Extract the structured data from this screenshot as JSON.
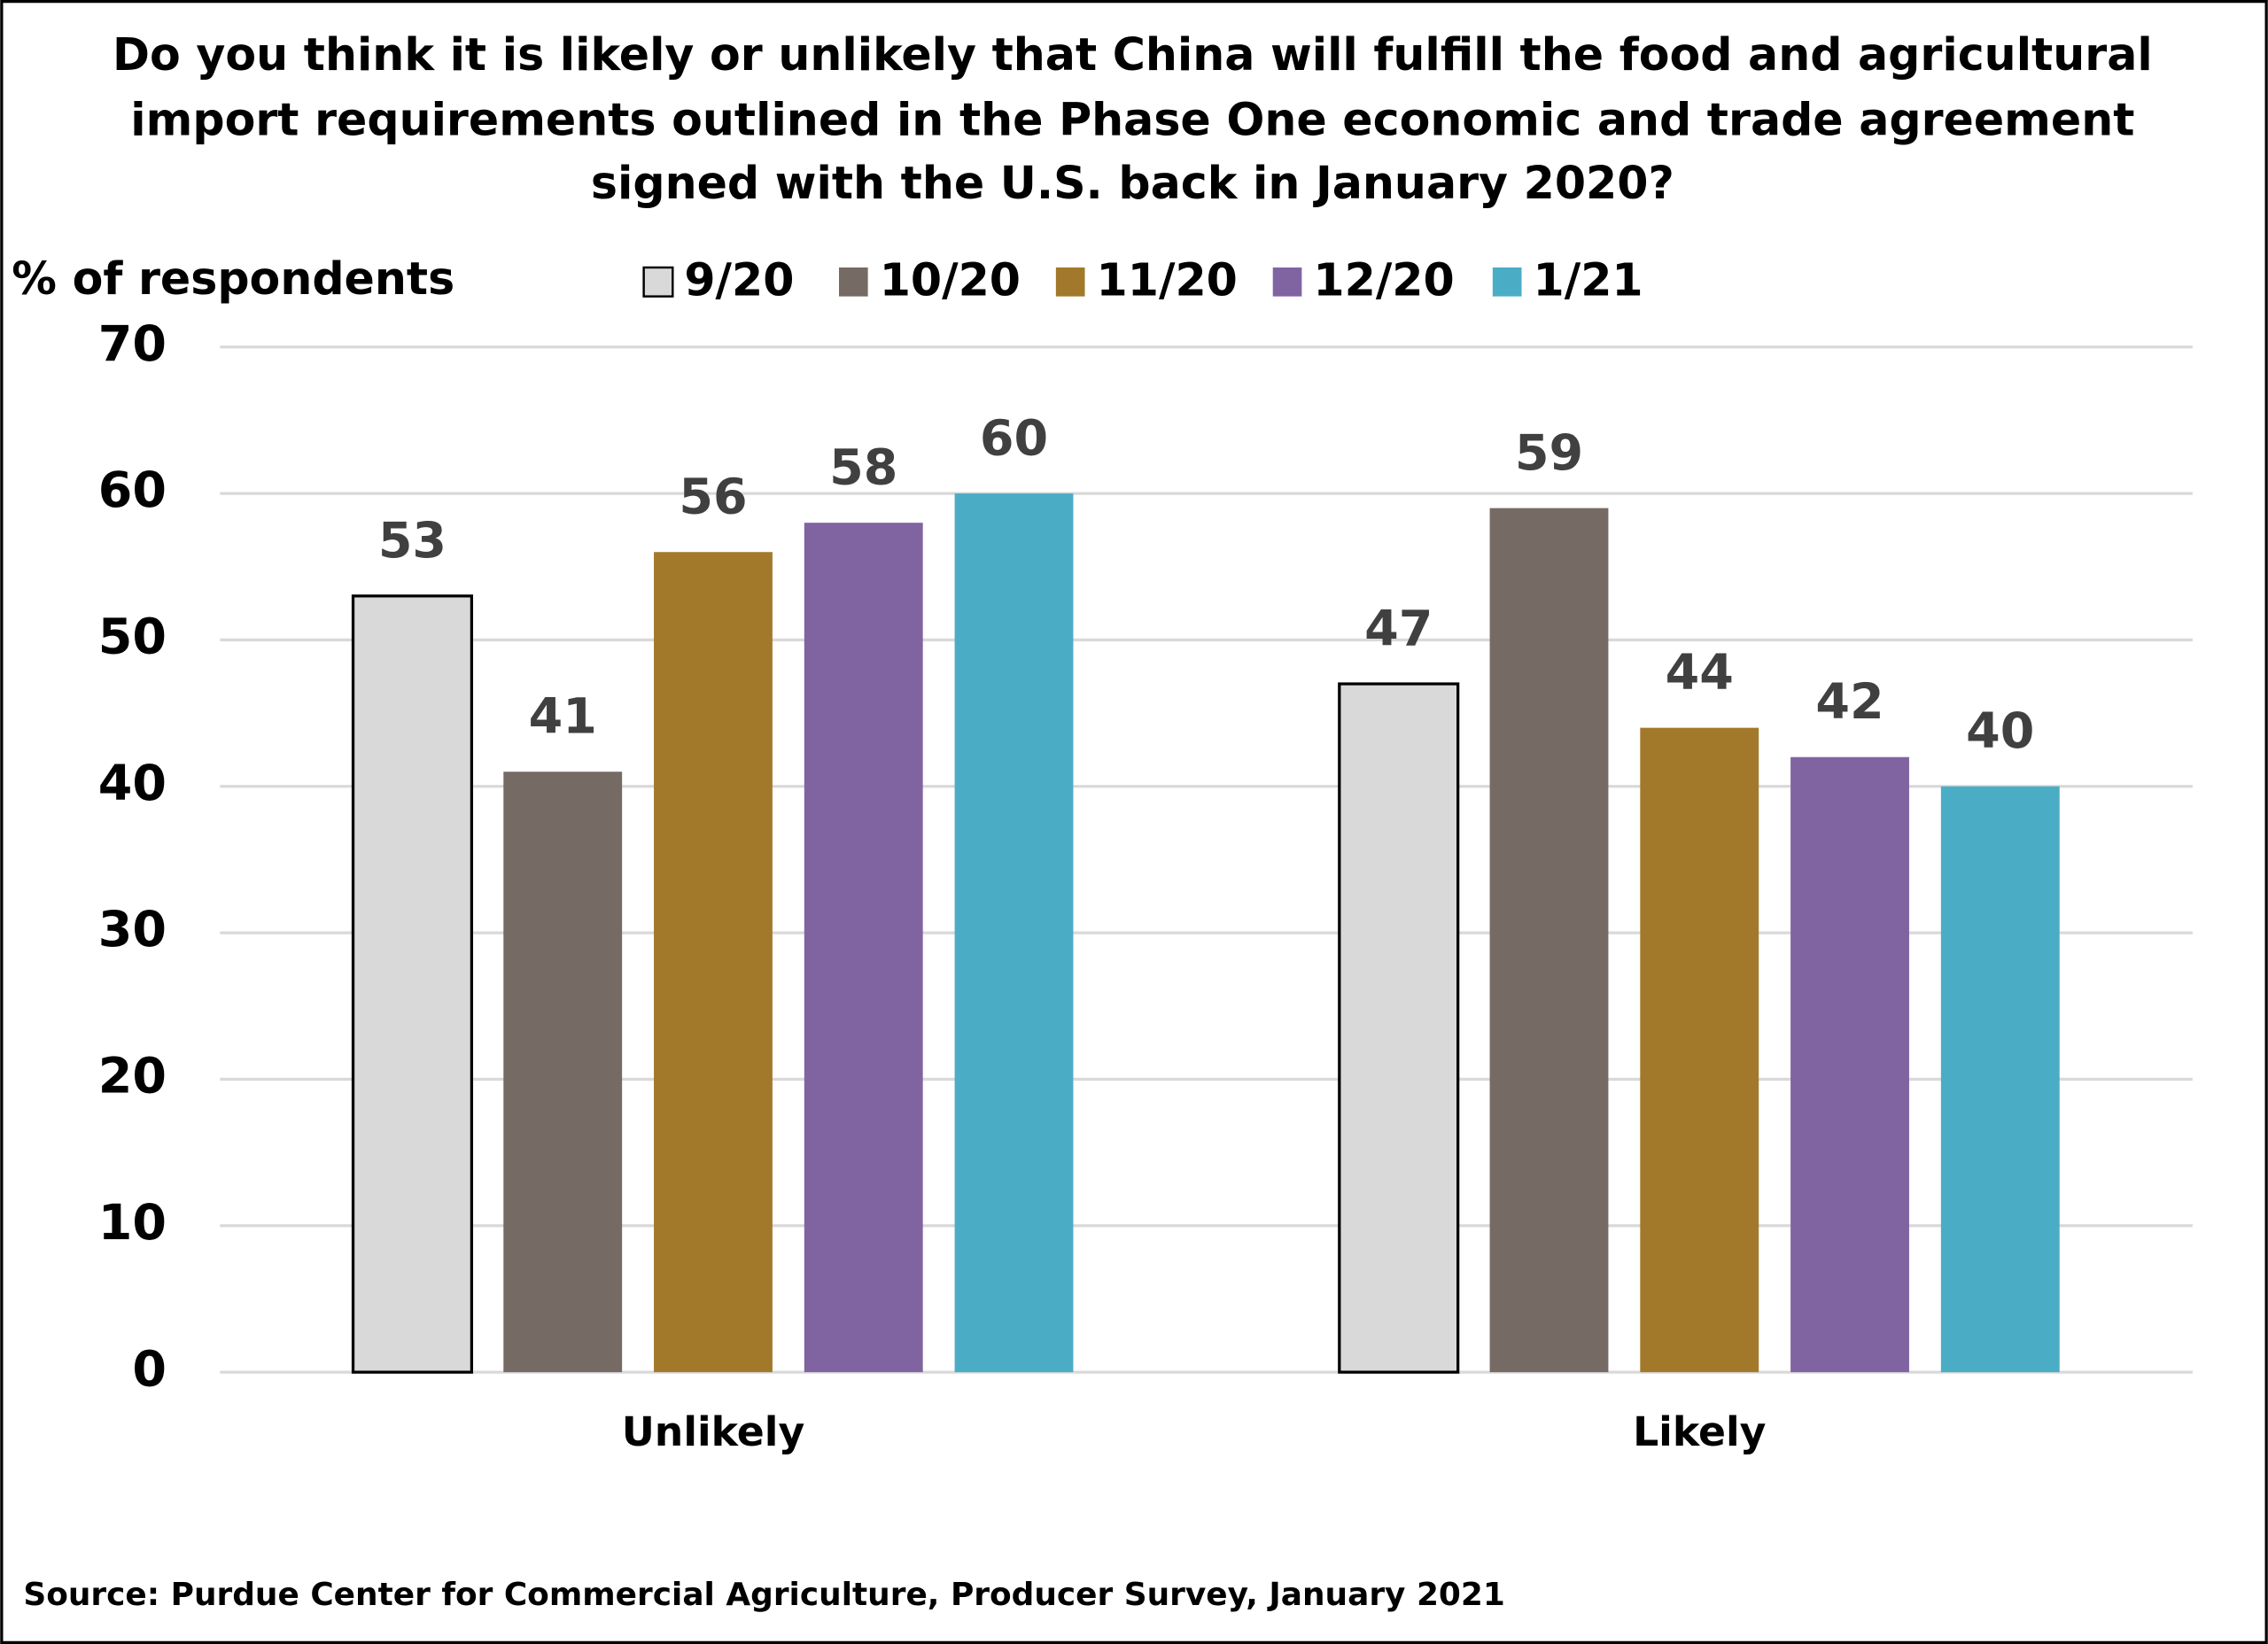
{
  "chart_data": {
    "type": "bar",
    "title": [
      "Do you think it is likely or unlikely that China will fulfill the food and agricultural",
      "import requirements outlined in the Phase One economic and trade agreement",
      "signed with the U.S. back in January 2020?"
    ],
    "y_label": "% of respondents",
    "source": "Source: Purdue Center for Commercial Agriculture, Producer Survey, January 2021",
    "categories": [
      "Unlikely",
      "Likely"
    ],
    "series": [
      {
        "name": "9/20",
        "color": "#d9d9d9",
        "values": [
          53,
          47
        ]
      },
      {
        "name": "10/20",
        "color": "#756b64",
        "values": [
          41,
          59
        ]
      },
      {
        "name": "11/20",
        "color": "#a2792b",
        "values": [
          56,
          44
        ]
      },
      {
        "name": "12/20",
        "color": "#8064a2",
        "values": [
          58,
          42
        ]
      },
      {
        "name": "1/21",
        "color": "#4bacc6",
        "values": [
          60,
          40
        ]
      }
    ],
    "ylim": [
      0,
      70
    ],
    "yticks": [
      0,
      10,
      20,
      30,
      40,
      50,
      60,
      70
    ],
    "grid": true
  }
}
